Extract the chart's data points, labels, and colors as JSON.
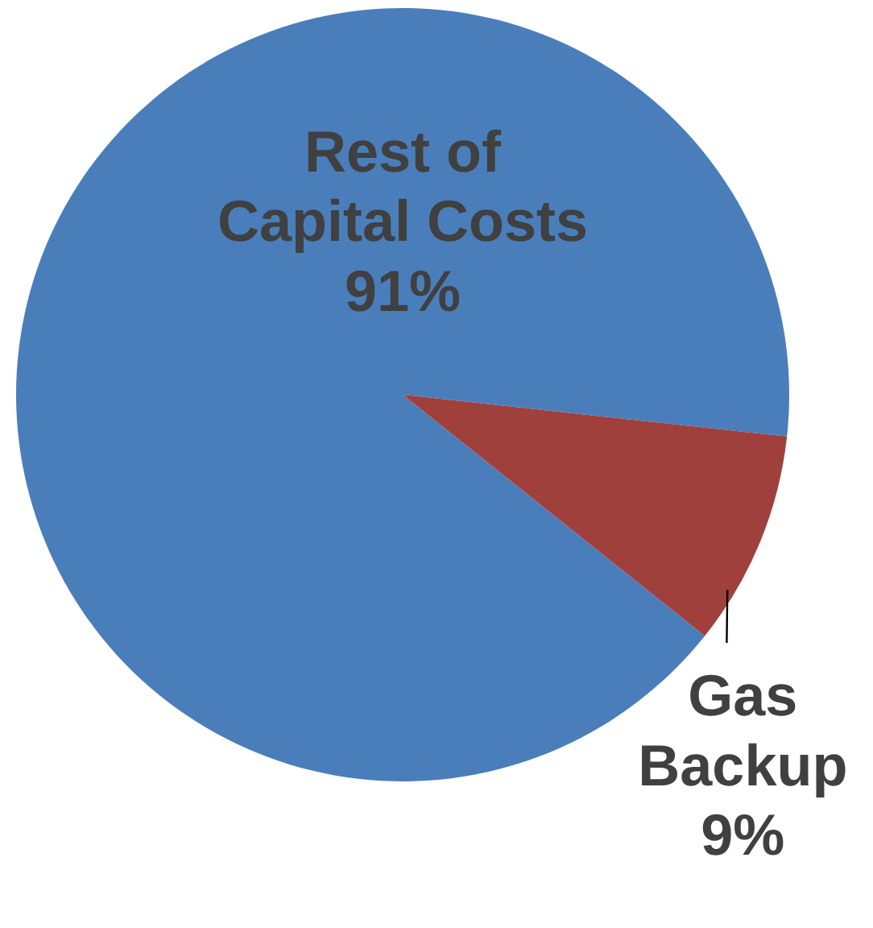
{
  "chart_data": {
    "type": "pie",
    "categories": [
      "Rest of Capital Costs",
      "Gas Backup"
    ],
    "values": [
      91,
      9
    ],
    "colors": [
      "#4a7ebb",
      "#a0403d"
    ],
    "value_labels": [
      "91%",
      "9%"
    ]
  }
}
